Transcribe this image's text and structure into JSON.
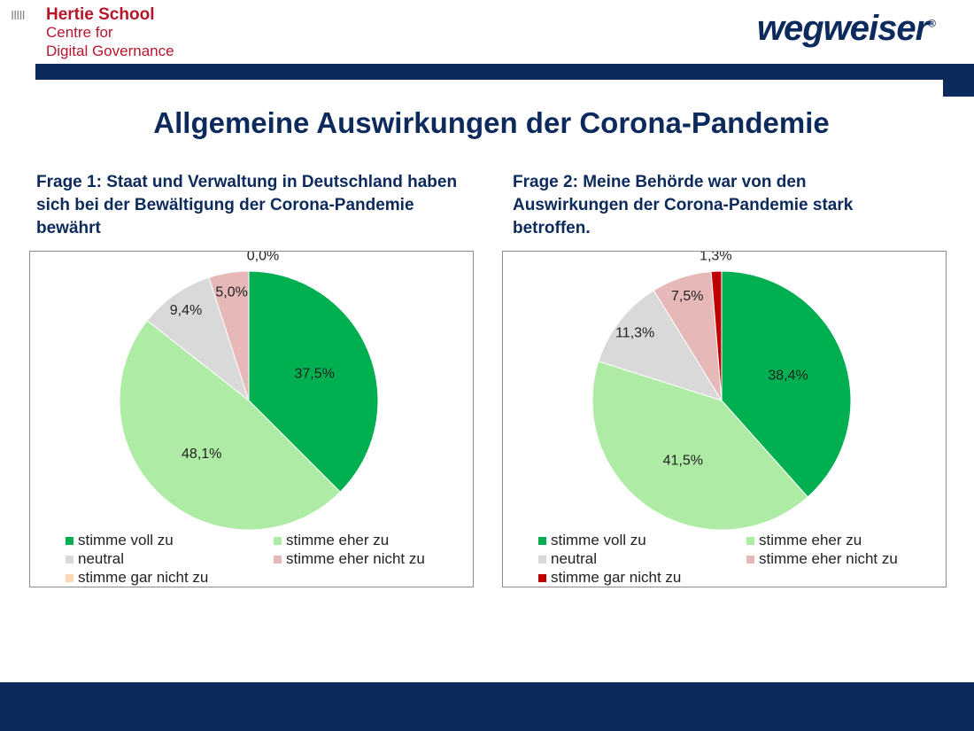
{
  "header": {
    "logo_left": {
      "line1": "Hertie School",
      "line2": "Centre for",
      "line3": "Digital Governance"
    },
    "logo_right": "wegweiser",
    "logo_right_mark": "®"
  },
  "title": "Allgemeine Auswirkungen der Corona-Pandemie",
  "colors": {
    "navy": "#0c2a5c",
    "stimme voll zu": "#00b050",
    "stimme eher zu": "#aeeba4",
    "neutral": "#d9d9d9",
    "stimme eher nicht zu": "#e6b8b7"
  },
  "chart_data": [
    {
      "type": "pie",
      "title": "Frage 1: Staat und Verwaltung in Deutschland haben sich bei der Bewältigung der Corona-Pandemie bewährt",
      "categories": [
        "stimme voll zu",
        "stimme eher zu",
        "neutral",
        "stimme eher nicht zu",
        "stimme gar nicht zu"
      ],
      "values": [
        37.5,
        48.1,
        9.4,
        5.0,
        0.0
      ],
      "labels": [
        "37,5%",
        "48,1%",
        "9,4%",
        "5,0%",
        "0,0%"
      ],
      "colors": [
        "#00b050",
        "#aeeba4",
        "#d9d9d9",
        "#e6b8b7",
        "#fcd5b5"
      ],
      "legend": "bottom"
    },
    {
      "type": "pie",
      "title": "Frage 2: Meine Behörde war von den Auswirkungen der Corona-Pandemie stark betroffen.",
      "categories": [
        "stimme voll zu",
        "stimme eher zu",
        "neutral",
        "stimme eher nicht zu",
        "stimme gar nicht zu"
      ],
      "values": [
        38.4,
        41.5,
        11.3,
        7.5,
        1.3
      ],
      "labels": [
        "38,4%",
        "41,5%",
        "11,3%",
        "7,5%",
        "1,3%"
      ],
      "colors": [
        "#00b050",
        "#aeeba4",
        "#d9d9d9",
        "#e6b8b7",
        "#c00000"
      ],
      "legend": "bottom"
    }
  ]
}
